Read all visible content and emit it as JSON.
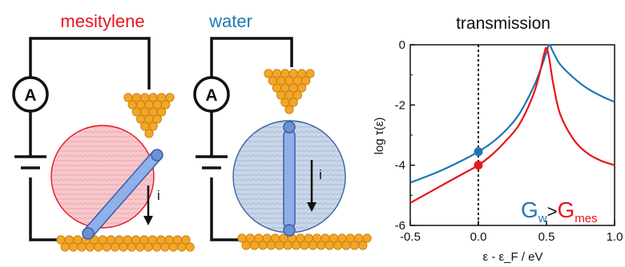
{
  "panels": {
    "mesitylene": {
      "label": "mesitylene",
      "label_color": "#e8141b",
      "meter": "A",
      "current": "i",
      "circle_fill": "#f6c8cc",
      "circle_stroke": "#e8141b"
    },
    "water": {
      "label": "water",
      "label_color": "#1f77b4",
      "meter": "A",
      "current": "i",
      "circle_fill": "#c9d6e8",
      "circle_stroke": "#3f62a6"
    }
  },
  "colors": {
    "gold": "#f5a623",
    "gold_stroke": "#c07a10",
    "wire": "#111111",
    "rod": "#8fb0e8",
    "rod_stroke": "#3a5fa8",
    "blue": "#1f77b4",
    "red": "#e8141b"
  },
  "chart_data": {
    "type": "line",
    "title": "transmission",
    "xlabel": "ε - ε_F / eV",
    "ylabel": "log τ(ε)",
    "xlim": [
      -0.5,
      1.0
    ],
    "ylim": [
      -6,
      0
    ],
    "xticks": [
      "-0.5",
      "0.0",
      "0.5",
      "1.0"
    ],
    "yticks": [
      "0",
      "-2",
      "-4",
      "-6"
    ],
    "series": [
      {
        "key": "water",
        "color": "#1f77b4",
        "x": [
          -0.5,
          -0.3,
          -0.1,
          0.0,
          0.1,
          0.2,
          0.3,
          0.4,
          0.45,
          0.5,
          0.52,
          0.55,
          0.6,
          0.7,
          0.8,
          0.9,
          1.0
        ],
        "y": [
          -4.58,
          -4.23,
          -3.8,
          -3.55,
          -3.25,
          -2.85,
          -2.3,
          -1.45,
          -0.9,
          -0.25,
          0.0,
          -0.25,
          -0.65,
          -1.1,
          -1.45,
          -1.7,
          -1.9
        ]
      },
      {
        "key": "mesitylene",
        "color": "#e8141b",
        "x": [
          -0.5,
          -0.3,
          -0.1,
          0.0,
          0.1,
          0.2,
          0.3,
          0.4,
          0.45,
          0.48,
          0.5,
          0.52,
          0.55,
          0.6,
          0.7,
          0.8,
          0.9,
          1.0
        ],
        "y": [
          -5.25,
          -4.75,
          -4.25,
          -4.0,
          -3.65,
          -3.2,
          -2.65,
          -1.7,
          -0.95,
          -0.35,
          -0.1,
          -0.45,
          -1.3,
          -2.3,
          -3.15,
          -3.6,
          -3.85,
          -4.0
        ]
      }
    ],
    "markers": [
      {
        "x": 0.0,
        "y": -3.55,
        "color": "#1f77b4"
      },
      {
        "x": 0.0,
        "y": -4.0,
        "color": "#e8141b"
      }
    ],
    "annotation": {
      "G": "G",
      "w_sub": "w",
      "gt": ">",
      "mes_sub": "mes"
    }
  }
}
